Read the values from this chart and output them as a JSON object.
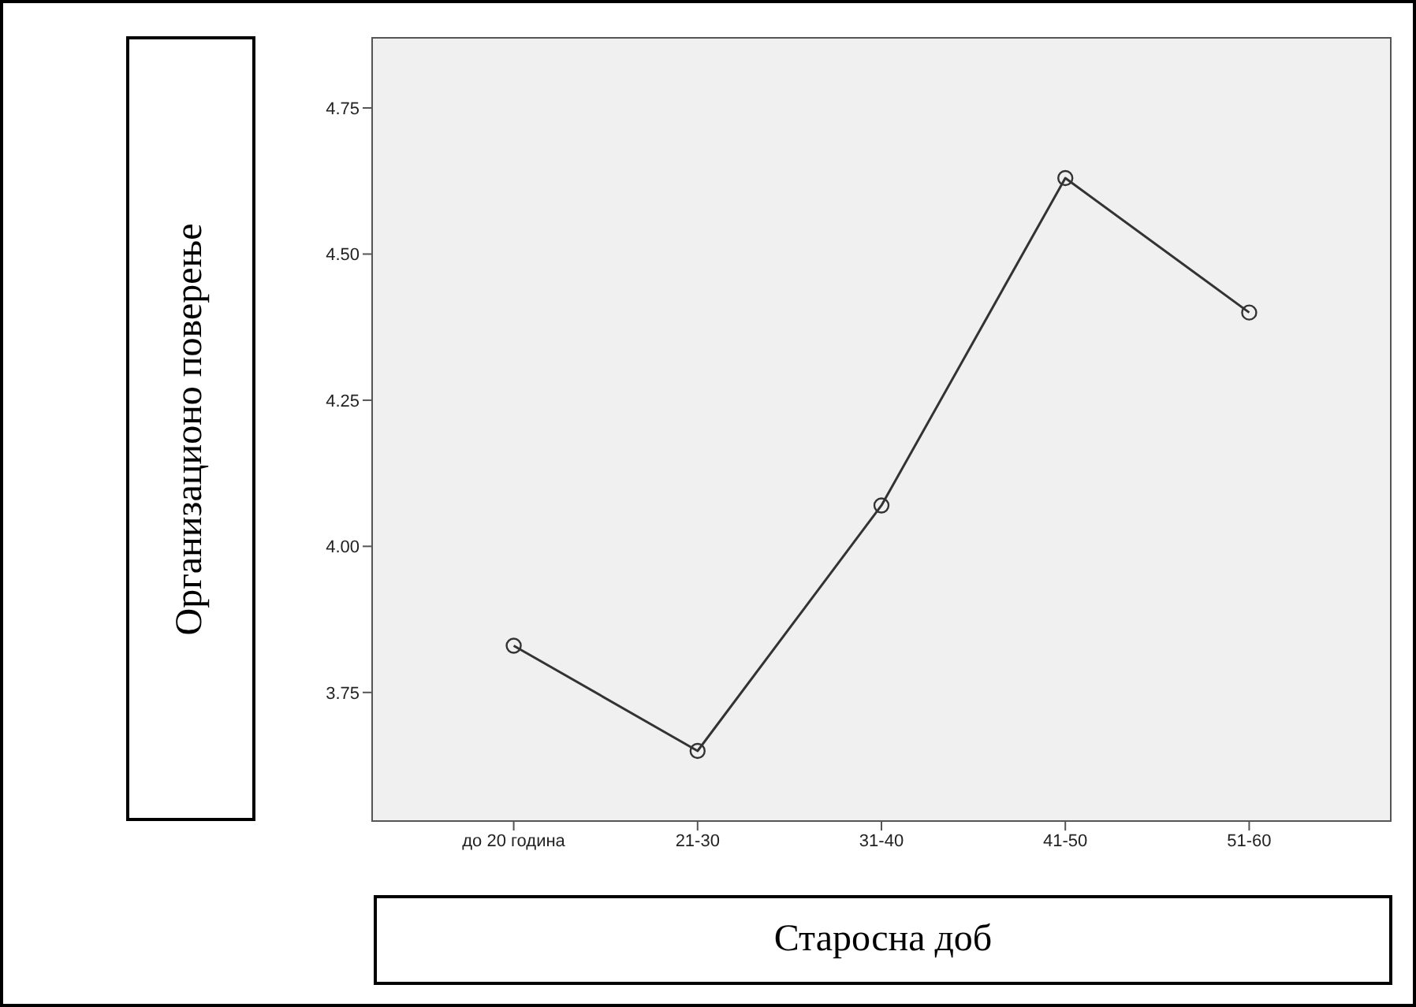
{
  "chart_data": {
    "type": "line",
    "xlabel": "Старосна доб",
    "ylabel": "Организационо поверење",
    "categories": [
      "до 20 година",
      "21-30",
      "31-40",
      "41-50",
      "51-60"
    ],
    "series": [
      {
        "color": "#333333",
        "values": [
          3.83,
          3.65,
          4.07,
          4.63,
          4.4
        ]
      }
    ],
    "ylim": [
      3.53,
      4.87
    ],
    "yticks": [
      {
        "value": 3.75,
        "label": "3.75"
      },
      {
        "value": 4,
        "label": "4.00"
      },
      {
        "value": 4.25,
        "label": "4.25"
      },
      {
        "value": 4.5,
        "label": "4.50"
      },
      {
        "value": 4.75,
        "label": "4.75"
      }
    ],
    "marker": "circle",
    "line_style": "solid"
  }
}
